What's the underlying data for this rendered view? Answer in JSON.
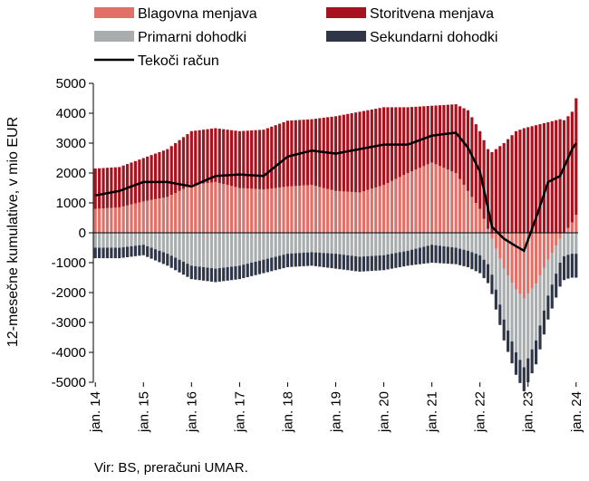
{
  "chart_data": {
    "type": "bar",
    "ylabel": "12-mesečne kumulative, v mio EUR",
    "ylim": [
      -5000,
      5000
    ],
    "yticks": [
      -5000,
      -4000,
      -3000,
      -2000,
      -1000,
      0,
      1000,
      2000,
      3000,
      4000,
      5000
    ],
    "xlim": [
      "2014-01",
      "2024-01"
    ],
    "xticks": [
      "jan. 14",
      "jan. 15",
      "jan. 16",
      "jan. 17",
      "jan. 18",
      "jan. 19",
      "jan. 20",
      "jan. 21",
      "jan. 22",
      "jan. 23",
      "jan. 24"
    ],
    "grid": false,
    "legend_position": "top",
    "stacking": "stacked bars by month; positive and negative components stacked separately from zero; Tekoči račun is the line",
    "series": [
      {
        "name": "Blagovna menjava",
        "kind": "bar",
        "color": "#E07068",
        "points": [
          [
            "2014-01",
            800
          ],
          [
            "2014-07",
            850
          ],
          [
            "2015-01",
            1050
          ],
          [
            "2015-07",
            1200
          ],
          [
            "2016-01",
            1600
          ],
          [
            "2016-07",
            1700
          ],
          [
            "2017-01",
            1500
          ],
          [
            "2017-07",
            1450
          ],
          [
            "2018-01",
            1550
          ],
          [
            "2018-07",
            1600
          ],
          [
            "2019-01",
            1400
          ],
          [
            "2019-07",
            1350
          ],
          [
            "2020-01",
            1600
          ],
          [
            "2020-07",
            2000
          ],
          [
            "2021-01",
            2350
          ],
          [
            "2021-07",
            2000
          ],
          [
            "2021-10",
            1400
          ],
          [
            "2022-01",
            800
          ],
          [
            "2022-04",
            -200
          ],
          [
            "2022-07",
            -1200
          ],
          [
            "2022-10",
            -1900
          ],
          [
            "2022-12",
            -2200
          ],
          [
            "2023-03",
            -1700
          ],
          [
            "2023-06",
            -900
          ],
          [
            "2023-09",
            -200
          ],
          [
            "2023-12",
            350
          ],
          [
            "2024-01",
            600
          ]
        ]
      },
      {
        "name": "Storitvena menjava",
        "kind": "bar",
        "color": "#A6131E",
        "points": [
          [
            "2014-01",
            1350
          ],
          [
            "2014-07",
            1350
          ],
          [
            "2015-01",
            1450
          ],
          [
            "2015-07",
            1600
          ],
          [
            "2016-01",
            1800
          ],
          [
            "2016-07",
            1800
          ],
          [
            "2017-01",
            1900
          ],
          [
            "2017-07",
            2000
          ],
          [
            "2018-01",
            2200
          ],
          [
            "2018-07",
            2200
          ],
          [
            "2019-01",
            2500
          ],
          [
            "2019-07",
            2700
          ],
          [
            "2020-01",
            2600
          ],
          [
            "2020-07",
            2200
          ],
          [
            "2021-01",
            1900
          ],
          [
            "2021-07",
            2300
          ],
          [
            "2021-10",
            2700
          ],
          [
            "2022-01",
            2600
          ],
          [
            "2022-04",
            2700
          ],
          [
            "2022-07",
            3000
          ],
          [
            "2022-10",
            3400
          ],
          [
            "2022-12",
            3500
          ],
          [
            "2023-03",
            3600
          ],
          [
            "2023-06",
            3700
          ],
          [
            "2023-09",
            3800
          ],
          [
            "2023-12",
            3700
          ],
          [
            "2024-01",
            3900
          ]
        ]
      },
      {
        "name": "Primarni dohodki",
        "kind": "bar",
        "color": "#A9ADAE",
        "points": [
          [
            "2014-01",
            -500
          ],
          [
            "2014-07",
            -500
          ],
          [
            "2015-01",
            -400
          ],
          [
            "2015-07",
            -700
          ],
          [
            "2016-01",
            -1100
          ],
          [
            "2016-07",
            -1200
          ],
          [
            "2017-01",
            -1100
          ],
          [
            "2017-07",
            -900
          ],
          [
            "2018-01",
            -700
          ],
          [
            "2018-07",
            -650
          ],
          [
            "2019-01",
            -700
          ],
          [
            "2019-07",
            -800
          ],
          [
            "2020-01",
            -750
          ],
          [
            "2020-07",
            -600
          ],
          [
            "2021-01",
            -400
          ],
          [
            "2021-07",
            -500
          ],
          [
            "2021-10",
            -600
          ],
          [
            "2022-01",
            -750
          ],
          [
            "2022-04",
            -1200
          ],
          [
            "2022-07",
            -1700
          ],
          [
            "2022-10",
            -2100
          ],
          [
            "2022-12",
            -2300
          ],
          [
            "2023-03",
            -1900
          ],
          [
            "2023-06",
            -1200
          ],
          [
            "2023-09",
            -800
          ],
          [
            "2023-12",
            -700
          ],
          [
            "2024-01",
            -700
          ]
        ]
      },
      {
        "name": "Sekundarni dohodki",
        "kind": "bar",
        "color": "#2E3648",
        "points": [
          [
            "2014-01",
            -350
          ],
          [
            "2014-07",
            -350
          ],
          [
            "2015-01",
            -350
          ],
          [
            "2015-07",
            -400
          ],
          [
            "2016-01",
            -450
          ],
          [
            "2016-07",
            -450
          ],
          [
            "2017-01",
            -450
          ],
          [
            "2017-07",
            -450
          ],
          [
            "2018-01",
            -450
          ],
          [
            "2018-07",
            -450
          ],
          [
            "2019-01",
            -500
          ],
          [
            "2019-07",
            -500
          ],
          [
            "2020-01",
            -500
          ],
          [
            "2020-07",
            -500
          ],
          [
            "2021-01",
            -600
          ],
          [
            "2021-07",
            -550
          ],
          [
            "2021-10",
            -550
          ],
          [
            "2022-01",
            -600
          ],
          [
            "2022-04",
            -650
          ],
          [
            "2022-07",
            -700
          ],
          [
            "2022-10",
            -750
          ],
          [
            "2022-12",
            -800
          ],
          [
            "2023-03",
            -800
          ],
          [
            "2023-06",
            -800
          ],
          [
            "2023-09",
            -800
          ],
          [
            "2023-12",
            -800
          ],
          [
            "2024-01",
            -800
          ]
        ]
      },
      {
        "name": "Tekoči račun",
        "kind": "line",
        "color": "#000000",
        "points": [
          [
            "2014-01",
            1250
          ],
          [
            "2014-07",
            1400
          ],
          [
            "2015-01",
            1700
          ],
          [
            "2015-07",
            1700
          ],
          [
            "2016-01",
            1550
          ],
          [
            "2016-07",
            1900
          ],
          [
            "2017-01",
            1950
          ],
          [
            "2017-07",
            1900
          ],
          [
            "2018-01",
            2550
          ],
          [
            "2018-07",
            2750
          ],
          [
            "2019-01",
            2650
          ],
          [
            "2019-07",
            2800
          ],
          [
            "2020-01",
            2950
          ],
          [
            "2020-07",
            2950
          ],
          [
            "2021-01",
            3250
          ],
          [
            "2021-07",
            3350
          ],
          [
            "2021-10",
            2850
          ],
          [
            "2022-01",
            2050
          ],
          [
            "2022-04",
            200
          ],
          [
            "2022-07",
            -200
          ],
          [
            "2022-10",
            -450
          ],
          [
            "2022-12",
            -600
          ],
          [
            "2023-03",
            500
          ],
          [
            "2023-06",
            1700
          ],
          [
            "2023-09",
            1900
          ],
          [
            "2023-12",
            2800
          ],
          [
            "2024-01",
            3000
          ]
        ]
      }
    ],
    "source": "Vir: BS, preračuni UMAR."
  }
}
